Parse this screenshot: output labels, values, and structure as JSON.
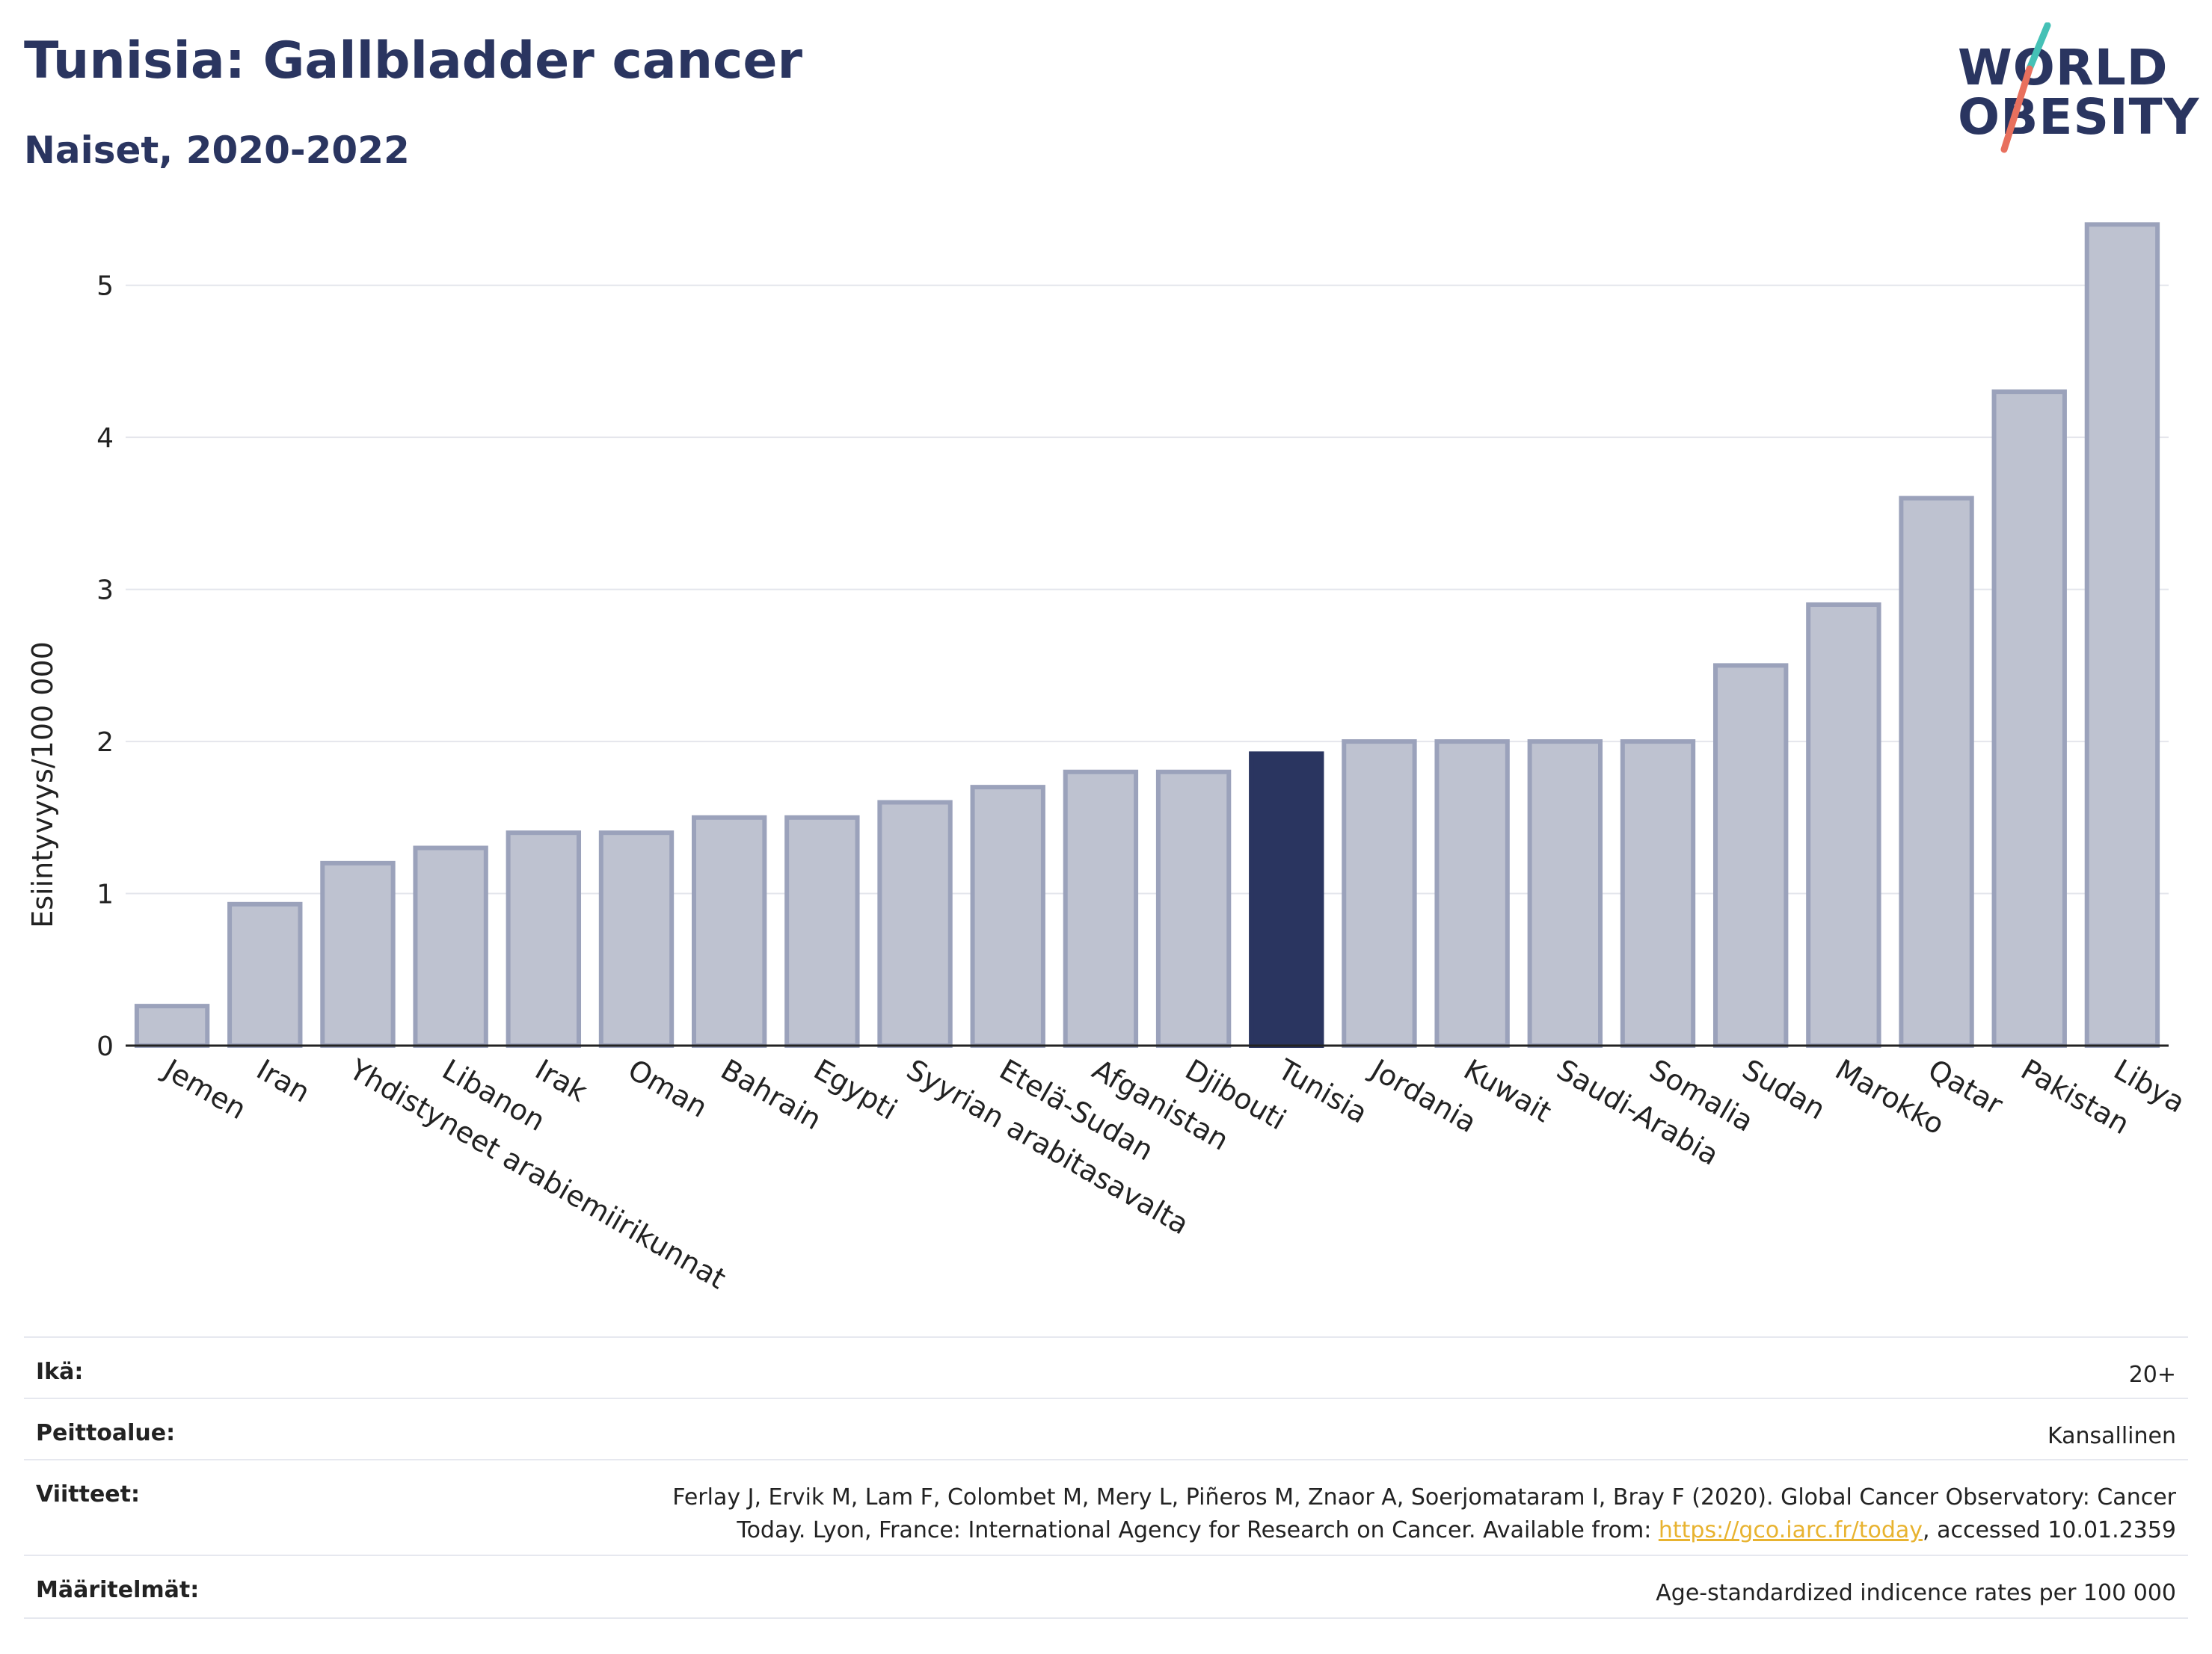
{
  "header": {
    "title": "Tunisia: Gallbladder cancer",
    "subtitle": "Naiset, 2020-2022"
  },
  "logo": {
    "line1": "WORLD",
    "line2": "OBESITY",
    "accent1": "#45c1b6",
    "accent2": "#e8705e"
  },
  "chart_data": {
    "type": "bar",
    "ylabel": "Esiintyvyys/100 000",
    "xlabel": "",
    "ylim": [
      0,
      5.5
    ],
    "yticks": [
      0,
      1,
      2,
      3,
      4,
      5
    ],
    "grid": true,
    "highlight": "Tunisia",
    "colors": {
      "bar": "#bec2d0",
      "bar_border": "#9ba2bb",
      "highlight": "#2a3560"
    },
    "categories": [
      "Jemen",
      "Iran",
      "Yhdistyneet arabiemiirikunnat",
      "Libanon",
      "Irak",
      "Oman",
      "Bahrain",
      "Egypti",
      "Syyrian arabitasavalta",
      "Etelä-Sudan",
      "Afganistan",
      "Djibouti",
      "Tunisia",
      "Jordania",
      "Kuwait",
      "Saudi-Arabia",
      "Somalia",
      "Sudan",
      "Marokko",
      "Qatar",
      "Pakistan",
      "Libya"
    ],
    "values": [
      0.26,
      0.93,
      1.2,
      1.3,
      1.4,
      1.4,
      1.5,
      1.5,
      1.6,
      1.7,
      1.8,
      1.8,
      1.92,
      2.0,
      2.0,
      2.0,
      2.0,
      2.5,
      2.9,
      3.6,
      4.3,
      5.4
    ]
  },
  "info": {
    "age_label": "Ikä:",
    "age_value": "20+",
    "coverage_label": "Peittoalue:",
    "coverage_value": "Kansallinen",
    "refs_label": "Viitteet:",
    "refs_line1": "Ferlay J, Ervik M, Lam F, Colombet M, Mery L, Piñeros M, Znaor A, Soerjomataram I, Bray F (2020). Global Cancer Observatory: Cancer",
    "refs_line2_pre": "Today. Lyon, France: International Agency for Research on Cancer. Available from: ",
    "refs_link": "https://gco.iarc.fr/today",
    "refs_line2_post": ", accessed 10.01.2359",
    "defs_label": "Määritelmät:",
    "defs_value": "Age-standardized indicence rates per 100 000"
  }
}
